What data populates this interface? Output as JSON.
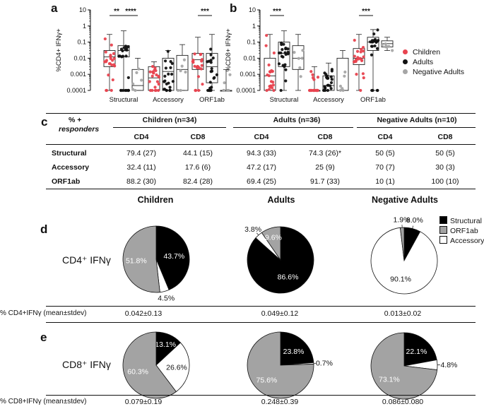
{
  "panels": {
    "a": "a",
    "b": "b",
    "c": "c",
    "d": "d",
    "e": "e"
  },
  "colors": {
    "children": "#e8434f",
    "adults": "#111111",
    "negative": "#a6a6a6",
    "structural": "#000000",
    "orf1ab": "#a3a3a3",
    "accessory": "#ffffff"
  },
  "chart_data": [
    {
      "id": "a",
      "type": "box",
      "ylabel": "%CD4+ IFNγ+",
      "yscale": "log",
      "ylim": [
        0.0001,
        10
      ],
      "yticks": [
        "10",
        "1",
        "0.1",
        "0.01",
        "0.001",
        "0.0001"
      ],
      "categories": [
        "Structural",
        "Accessory",
        "ORF1ab"
      ],
      "series_names": [
        "Children",
        "Adults",
        "Negative Adults"
      ],
      "boxes": [
        [
          {
            "min": 0.0001,
            "q1": 0.003,
            "med": 0.012,
            "q3": 0.03,
            "max": 0.3
          },
          {
            "min": 0.0001,
            "q1": 0.012,
            "med": 0.03,
            "q3": 0.06,
            "max": 0.5
          },
          {
            "min": 0.0001,
            "q1": 0.0001,
            "med": 0.0002,
            "q3": 0.002,
            "max": 0.01
          }
        ],
        [
          {
            "min": 0.0001,
            "q1": 0.0001,
            "med": 0.0006,
            "q3": 0.003,
            "max": 0.006
          },
          {
            "min": 0.0001,
            "q1": 0.0001,
            "med": 0.0015,
            "q3": 0.01,
            "max": 0.03
          },
          {
            "min": 0.0001,
            "q1": 0.0001,
            "med": 0.002,
            "q3": 0.015,
            "max": 0.07
          }
        ],
        [
          {
            "min": 0.0001,
            "q1": 0.002,
            "med": 0.008,
            "q3": 0.02,
            "max": 0.2
          },
          {
            "min": 0.0001,
            "q1": 0.0003,
            "med": 0.003,
            "q3": 0.02,
            "max": 0.3
          },
          {
            "min": 0.0001,
            "q1": 0.0001,
            "med": 0.0001,
            "q3": 0.0001,
            "max": 0.002
          }
        ]
      ],
      "significance": [
        {
          "from": [
            0,
            0
          ],
          "to": [
            0,
            1
          ],
          "label": "**"
        },
        {
          "from": [
            0,
            1
          ],
          "to": [
            0,
            2
          ],
          "label": "****"
        },
        {
          "from": [
            2,
            0
          ],
          "to": [
            2,
            1
          ],
          "label": "***"
        }
      ]
    },
    {
      "id": "b",
      "type": "box",
      "ylabel": "%CD8+ IFNγ+",
      "yscale": "log",
      "ylim": [
        0.0001,
        10
      ],
      "yticks": [
        "10",
        "1",
        "0.1",
        "0.01",
        "0.001",
        "0.0001"
      ],
      "categories": [
        "Structural",
        "Accessory",
        "ORF1ab"
      ],
      "series_names": [
        "Children",
        "Adults",
        "Negative Adults"
      ],
      "boxes": [
        [
          {
            "min": 0.0001,
            "q1": 0.0001,
            "med": 0.0008,
            "q3": 0.01,
            "max": 0.3
          },
          {
            "min": 0.0001,
            "q1": 0.003,
            "med": 0.02,
            "q3": 0.1,
            "max": 0.5
          },
          {
            "min": 0.0001,
            "q1": 0.002,
            "med": 0.01,
            "q3": 0.06,
            "max": 0.3
          }
        ],
        [
          {
            "min": 0.0001,
            "q1": 0.0001,
            "med": 0.0001,
            "q3": 0.0001,
            "max": 0.003
          },
          {
            "min": 0.0001,
            "q1": 0.0001,
            "med": 0.0002,
            "q3": 0.0008,
            "max": 0.005
          },
          {
            "min": 0.0001,
            "q1": 0.0001,
            "med": 0.0001,
            "q3": 0.01,
            "max": 0.03
          }
        ],
        [
          {
            "min": 0.0001,
            "q1": 0.004,
            "med": 0.01,
            "q3": 0.04,
            "max": 0.3
          },
          {
            "min": 0.0001,
            "q1": 0.03,
            "med": 0.1,
            "q3": 0.2,
            "max": 0.6
          },
          {
            "min": 0.03,
            "q1": 0.05,
            "med": 0.08,
            "q3": 0.12,
            "max": 0.2
          }
        ]
      ],
      "significance": [
        {
          "from": [
            0,
            0
          ],
          "to": [
            0,
            1
          ],
          "label": "***"
        },
        {
          "from": [
            2,
            0
          ],
          "to": [
            2,
            1
          ],
          "label": "***"
        }
      ]
    },
    {
      "id": "d",
      "type": "pie",
      "rowlabel": "CD4⁺ IFNγ",
      "labels": [
        "Structural",
        "ORF1ab",
        "Accessory"
      ],
      "pies": [
        {
          "group": "Children",
          "values": [
            43.7,
            51.8,
            4.5
          ],
          "labels": [
            "43.7%",
            "51.8%",
            "4.5%"
          ]
        },
        {
          "group": "Adults",
          "values": [
            86.6,
            9.6,
            3.8
          ],
          "labels": [
            "86.6%",
            "9.6%",
            "3.8%"
          ]
        },
        {
          "group": "Negative Adults",
          "values": [
            8.0,
            1.9,
            90.1
          ],
          "labels": [
            "8.0%",
            "1.9%",
            "90.1%"
          ]
        }
      ],
      "mean_label": "% CD4+IFNγ (mean±stdev)",
      "means": [
        "0.042±0.13",
        "0.049±0.12",
        "0.013±0.02"
      ]
    },
    {
      "id": "e",
      "type": "pie",
      "rowlabel": "CD8⁺ IFNγ",
      "labels": [
        "Structural",
        "ORF1ab",
        "Accessory"
      ],
      "pies": [
        {
          "group": "Children",
          "values": [
            13.1,
            60.3,
            26.6
          ],
          "labels": [
            "13.1%",
            "60.3%",
            "26.6%"
          ]
        },
        {
          "group": "Adults",
          "values": [
            23.8,
            75.6,
            0.7
          ],
          "labels": [
            "23.8%",
            "75.6%",
            "0.7%"
          ]
        },
        {
          "group": "Negative Adults",
          "values": [
            22.1,
            73.1,
            4.8
          ],
          "labels": [
            "22.1%",
            "73.1%",
            "4.8%"
          ]
        }
      ],
      "mean_label": "% CD8+IFNγ (mean±stdev)",
      "means": [
        "0.079±0.19",
        "0.248±0.39",
        "0.086±0.080"
      ]
    }
  ],
  "legend_top": [
    "Children",
    "Adults",
    "Negative Adults"
  ],
  "legend_pie": [
    "Structural",
    "ORF1ab",
    "Accessory"
  ],
  "pie_groups": [
    "Children",
    "Adults",
    "Negative Adults"
  ],
  "table": {
    "corner_line1": "% +",
    "corner_line2": "responders",
    "groups": [
      "Children (n=34)",
      "Adults (n=36)",
      "Negative Adults (n=10)"
    ],
    "subheaders": [
      "CD4",
      "CD8",
      "CD4",
      "CD8",
      "CD4",
      "CD8"
    ],
    "rows": [
      {
        "label": "Structural",
        "cells": [
          "79.4 (27)",
          "44.1 (15)",
          "94.3 (33)",
          "74.3 (26)*",
          "50 (5)",
          "50 (5)"
        ]
      },
      {
        "label": "Accessory",
        "cells": [
          "32.4 (11)",
          "17.6 (6)",
          "47.2 (17)",
          "25 (9)",
          "70 (7)",
          "30 (3)"
        ]
      },
      {
        "label": "ORF1ab",
        "cells": [
          "88.2 (30)",
          "82.4 (28)",
          "69.4 (25)",
          "91.7 (33)",
          "10 (1)",
          "100 (10)"
        ]
      }
    ]
  }
}
